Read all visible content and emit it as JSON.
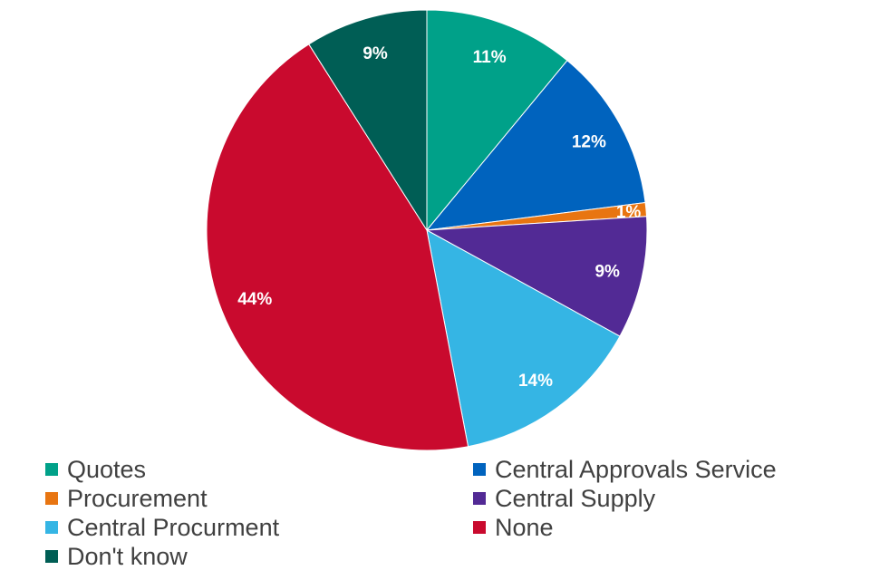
{
  "chart_data": {
    "type": "pie",
    "title": "",
    "slices": [
      {
        "name": "Quotes",
        "value": 11,
        "label": "11%",
        "color": "#00A189"
      },
      {
        "name": "Central Approvals Service",
        "value": 12,
        "label": "12%",
        "color": "#0063BE"
      },
      {
        "name": "Procurement",
        "value": 1,
        "label": "1%",
        "color": "#E87511"
      },
      {
        "name": "Central Supply",
        "value": 9,
        "label": "9%",
        "color": "#522A95"
      },
      {
        "name": "Central Procurment",
        "value": 14,
        "label": "14%",
        "color": "#35B5E4"
      },
      {
        "name": "None",
        "value": 44,
        "label": "44%",
        "color": "#C90A2E"
      },
      {
        "name": "Don't know",
        "value": 9,
        "label": "9%",
        "color": "#005E55"
      }
    ],
    "legend_position": "bottom",
    "legend_order": [
      "Quotes",
      "Central Approvals Service",
      "Procurement",
      "Central Supply",
      "Central Procurment",
      "None",
      "Don't know"
    ]
  }
}
